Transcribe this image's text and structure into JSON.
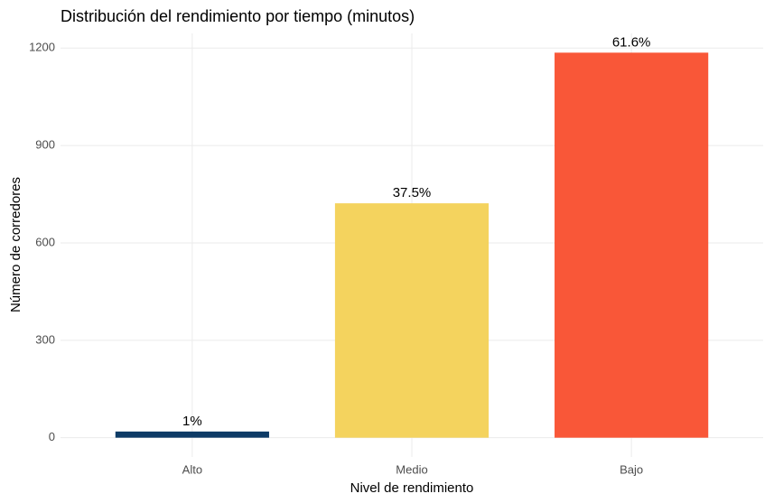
{
  "chart_data": {
    "type": "bar",
    "title": "Distribución del rendimiento por tiempo (minutos)",
    "x_label": "Nivel de rendimiento",
    "y_label": "Número de corredores",
    "categories": [
      "Alto",
      "Medio",
      "Bajo"
    ],
    "values": [
      19,
      722,
      1186
    ],
    "annotations": [
      "1%",
      "37.5%",
      "61.6%"
    ],
    "colors": [
      "#0d3b66",
      "#f4d35e",
      "#f95738"
    ],
    "ylim": [
      -59.3,
      1245.3
    ],
    "yticks": [
      0,
      300,
      600,
      900,
      1200
    ],
    "grid": true
  }
}
